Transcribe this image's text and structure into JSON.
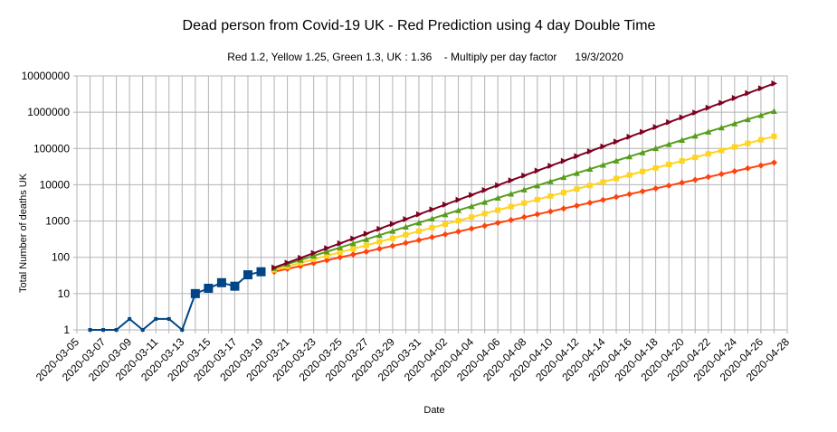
{
  "chart_data": {
    "type": "line",
    "title": "Dead person from Covid-19 UK - Red Prediction using 4 day Double Time",
    "subtitle": "Red 1.2, Yellow 1.25, Green 1.3, UK : 1.36    - Multiply per day factor      19/3/2020",
    "xlabel": "Date",
    "ylabel": "Total Number of deaths UK",
    "y_scale": "log",
    "ylim": [
      1,
      10000000
    ],
    "yticks": [
      "1",
      "10",
      "100",
      "1000",
      "10000",
      "100000",
      "1000000",
      "10000000"
    ],
    "x_start": "2020-03-05",
    "x_end": "2020-04-28",
    "xticks": [
      "2020-03-05",
      "2020-03-07",
      "2020-03-09",
      "2020-03-11",
      "2020-03-13",
      "2020-03-15",
      "2020-03-17",
      "2020-03-19",
      "2020-03-21",
      "2020-03-23",
      "2020-03-25",
      "2020-03-27",
      "2020-03-29",
      "2020-03-31",
      "2020-04-02",
      "2020-04-04",
      "2020-04-06",
      "2020-04-08",
      "2020-04-10",
      "2020-04-12",
      "2020-04-14",
      "2020-04-16",
      "2020-04-18",
      "2020-04-20",
      "2020-04-22",
      "2020-04-24",
      "2020-04-26",
      "2020-04-28"
    ],
    "grid": true,
    "legend": "none",
    "series": [
      {
        "role": "observed",
        "color": "#004586",
        "x": [
          "2020-03-06",
          "2020-03-07",
          "2020-03-08",
          "2020-03-09",
          "2020-03-10",
          "2020-03-11",
          "2020-03-12",
          "2020-03-13",
          "2020-03-14",
          "2020-03-15",
          "2020-03-16",
          "2020-03-17",
          "2020-03-18",
          "2020-03-19"
        ],
        "y": [
          1,
          1,
          1,
          2,
          1,
          2,
          2,
          1,
          10,
          14,
          20,
          16,
          33,
          40
        ]
      },
      {
        "role": "prediction",
        "color": "#ff420e",
        "multiplier": 1.2,
        "x_from": "2020-03-20",
        "x_to": "2020-04-27",
        "y_start": 40
      },
      {
        "role": "prediction",
        "color": "#ffd320",
        "multiplier": 1.25,
        "x_from": "2020-03-20",
        "x_to": "2020-04-27",
        "y_start": 45
      },
      {
        "role": "prediction",
        "color": "#579d1c",
        "multiplier": 1.3,
        "x_from": "2020-03-20",
        "x_to": "2020-04-27",
        "y_start": 50
      },
      {
        "role": "prediction",
        "color": "#7e0021",
        "multiplier": 1.36,
        "x_from": "2020-03-20",
        "x_to": "2020-04-27",
        "y_start": 52
      }
    ]
  }
}
